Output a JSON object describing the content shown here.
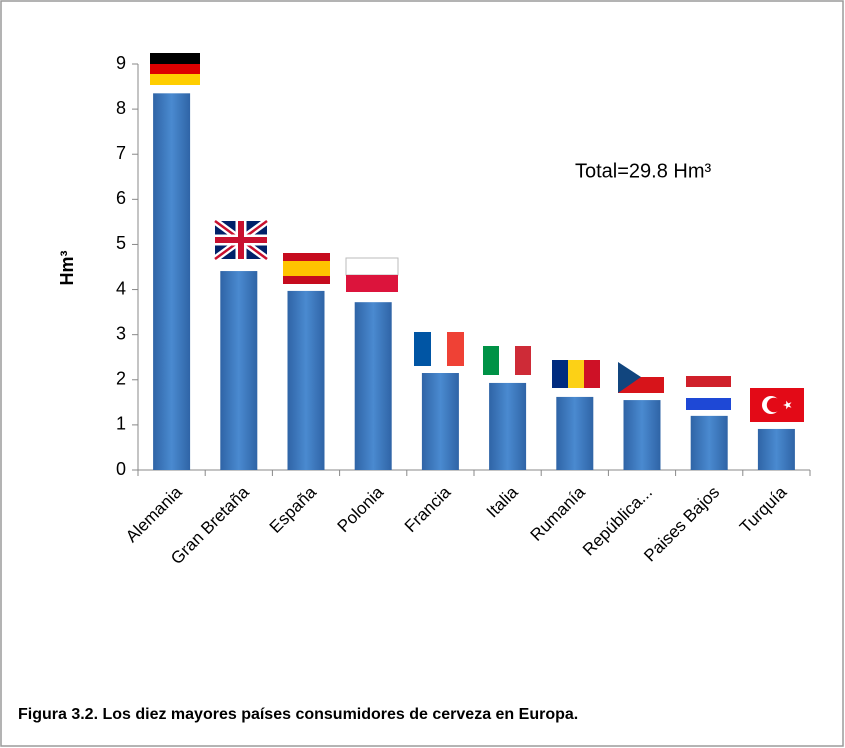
{
  "chart_data": {
    "type": "bar",
    "categories": [
      "Alemania",
      "Gran Bretaña",
      "España",
      "Polonia",
      "Francia",
      "Italia",
      "Rumanía",
      "República...",
      "Paises Bajos",
      "Turquía"
    ],
    "values": [
      8.35,
      4.41,
      3.97,
      3.72,
      2.15,
      1.93,
      1.62,
      1.55,
      1.2,
      0.91
    ],
    "color": "#3d78bf",
    "y_label": "Hm³",
    "annotation": "Total=29.8 Hm³",
    "caption": "Figura 3.2. Los diez mayores países consumidores de cerveza en Europa.",
    "ylim": [
      0,
      9
    ],
    "yticks": [
      0,
      1,
      2,
      3,
      4,
      5,
      6,
      7,
      8,
      9
    ],
    "grid": false
  }
}
